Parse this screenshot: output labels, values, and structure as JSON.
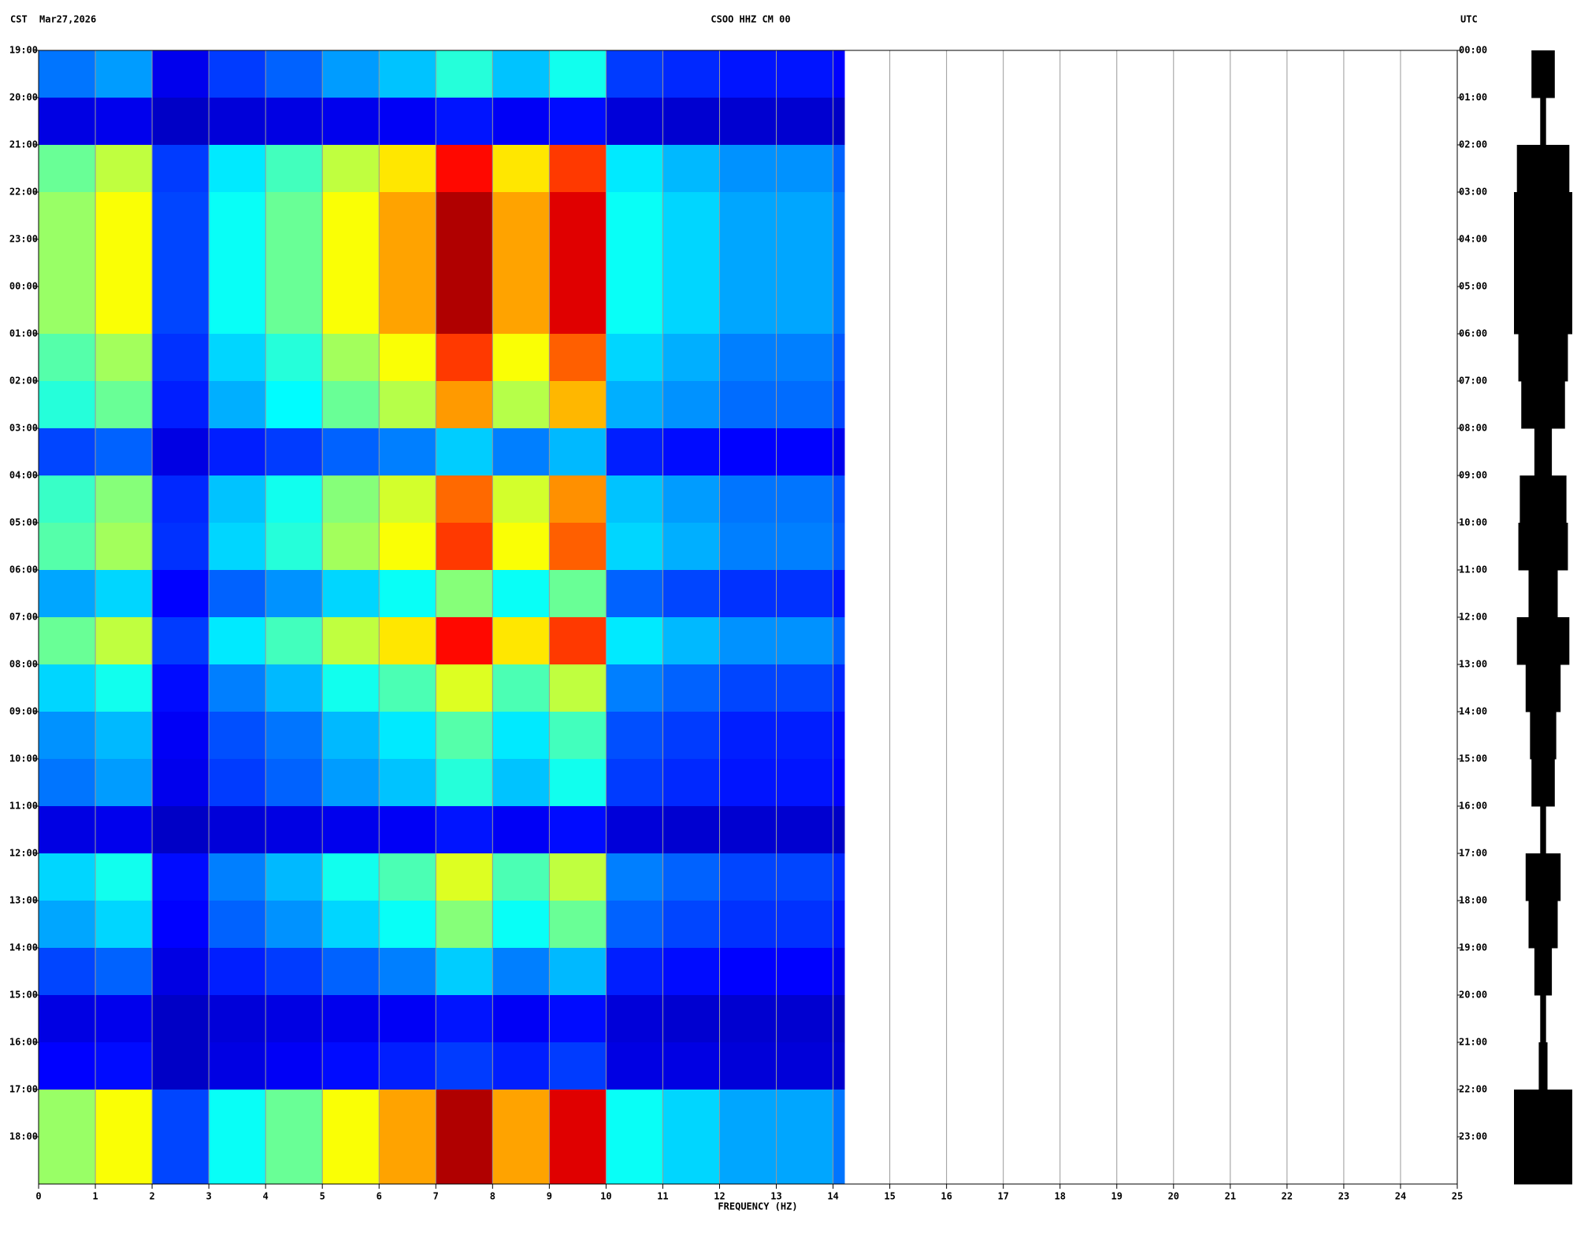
{
  "chart_data": {
    "type": "spectrogram",
    "title": "CSOO HHZ CM 00",
    "timezone": "CST",
    "date": "Mar27,2026",
    "right_axis_label": "UTC",
    "x_label": "FREQUENCY (HZ)",
    "xlim": [
      0,
      25
    ],
    "xticks": [
      0,
      1,
      2,
      3,
      4,
      5,
      6,
      7,
      8,
      9,
      10,
      11,
      12,
      13,
      14,
      15,
      16,
      17,
      18,
      19,
      20,
      21,
      22,
      23,
      24,
      25
    ],
    "grid": true,
    "bins": [
      0,
      1,
      2,
      3,
      4,
      5,
      6,
      7,
      8,
      9,
      10,
      11,
      12,
      13,
      14,
      14.2
    ],
    "categories": [
      "19:00",
      "20:00",
      "21:00",
      "22:00",
      "23:00",
      "00:00",
      "01:00",
      "02:00",
      "03:00",
      "04:00",
      "05:00",
      "06:00",
      "07:00",
      "08:00",
      "09:00",
      "10:00",
      "11:00",
      "12:00",
      "13:00",
      "14:00",
      "15:00",
      "16:00",
      "17:00",
      "18:00"
    ],
    "categories_utc": [
      "00:00",
      "01:00",
      "02:00",
      "03:00",
      "04:00",
      "05:00",
      "06:00",
      "07:00",
      "08:00",
      "09:00",
      "10:00",
      "11:00",
      "12:00",
      "13:00",
      "14:00",
      "15:00",
      "16:00",
      "17:00",
      "18:00",
      "19:00",
      "20:00",
      "21:00",
      "22:00",
      "23:00"
    ],
    "z": [
      [
        0.2,
        0.24,
        0.06,
        0.14,
        0.18,
        0.24,
        0.28,
        0.38,
        0.28,
        0.36,
        0.14,
        0.12,
        0.1,
        0.1,
        0.08
      ],
      [
        0.05,
        0.06,
        0.02,
        0.04,
        0.05,
        0.06,
        0.07,
        0.1,
        0.07,
        0.09,
        0.04,
        0.03,
        0.03,
        0.03,
        0.02
      ],
      [
        0.45,
        0.54,
        0.14,
        0.32,
        0.41,
        0.54,
        0.63,
        0.86,
        0.63,
        0.81,
        0.32,
        0.27,
        0.23,
        0.23,
        0.18
      ],
      [
        0.5,
        0.6,
        0.15,
        0.35,
        0.45,
        0.6,
        0.7,
        0.95,
        0.7,
        0.9,
        0.35,
        0.3,
        0.25,
        0.25,
        0.2
      ],
      [
        0.5,
        0.6,
        0.15,
        0.35,
        0.45,
        0.6,
        0.7,
        0.95,
        0.7,
        0.9,
        0.35,
        0.3,
        0.25,
        0.25,
        0.2
      ],
      [
        0.5,
        0.6,
        0.15,
        0.35,
        0.45,
        0.6,
        0.7,
        0.95,
        0.7,
        0.9,
        0.35,
        0.3,
        0.25,
        0.25,
        0.2
      ],
      [
        0.43,
        0.51,
        0.13,
        0.3,
        0.38,
        0.51,
        0.6,
        0.81,
        0.6,
        0.77,
        0.3,
        0.26,
        0.21,
        0.21,
        0.17
      ],
      [
        0.38,
        0.45,
        0.11,
        0.26,
        0.34,
        0.45,
        0.53,
        0.71,
        0.53,
        0.68,
        0.26,
        0.23,
        0.19,
        0.19,
        0.15
      ],
      [
        0.15,
        0.18,
        0.05,
        0.11,
        0.14,
        0.18,
        0.21,
        0.29,
        0.21,
        0.27,
        0.11,
        0.09,
        0.08,
        0.08,
        0.06
      ],
      [
        0.4,
        0.48,
        0.12,
        0.28,
        0.36,
        0.48,
        0.56,
        0.76,
        0.56,
        0.72,
        0.28,
        0.24,
        0.2,
        0.2,
        0.16
      ],
      [
        0.43,
        0.51,
        0.13,
        0.3,
        0.38,
        0.51,
        0.6,
        0.81,
        0.6,
        0.77,
        0.3,
        0.26,
        0.21,
        0.21,
        0.17
      ],
      [
        0.25,
        0.3,
        0.08,
        0.18,
        0.23,
        0.3,
        0.35,
        0.48,
        0.35,
        0.45,
        0.18,
        0.15,
        0.13,
        0.13,
        0.1
      ],
      [
        0.45,
        0.54,
        0.14,
        0.32,
        0.41,
        0.54,
        0.63,
        0.86,
        0.63,
        0.81,
        0.32,
        0.27,
        0.23,
        0.23,
        0.18
      ],
      [
        0.3,
        0.36,
        0.09,
        0.21,
        0.27,
        0.36,
        0.42,
        0.57,
        0.42,
        0.54,
        0.21,
        0.18,
        0.15,
        0.15,
        0.12
      ],
      [
        0.23,
        0.27,
        0.07,
        0.16,
        0.2,
        0.27,
        0.32,
        0.43,
        0.32,
        0.41,
        0.16,
        0.14,
        0.11,
        0.11,
        0.09
      ],
      [
        0.2,
        0.24,
        0.06,
        0.14,
        0.18,
        0.24,
        0.28,
        0.38,
        0.28,
        0.36,
        0.14,
        0.12,
        0.1,
        0.1,
        0.08
      ],
      [
        0.05,
        0.06,
        0.02,
        0.04,
        0.05,
        0.06,
        0.07,
        0.1,
        0.07,
        0.09,
        0.04,
        0.03,
        0.03,
        0.03,
        0.02
      ],
      [
        0.3,
        0.36,
        0.09,
        0.21,
        0.27,
        0.36,
        0.42,
        0.57,
        0.42,
        0.54,
        0.21,
        0.18,
        0.15,
        0.15,
        0.12
      ],
      [
        0.25,
        0.3,
        0.08,
        0.18,
        0.23,
        0.3,
        0.35,
        0.48,
        0.35,
        0.45,
        0.18,
        0.15,
        0.13,
        0.13,
        0.1
      ],
      [
        0.15,
        0.18,
        0.05,
        0.11,
        0.14,
        0.18,
        0.21,
        0.29,
        0.21,
        0.27,
        0.11,
        0.09,
        0.08,
        0.08,
        0.06
      ],
      [
        0.05,
        0.06,
        0.02,
        0.04,
        0.05,
        0.06,
        0.07,
        0.1,
        0.07,
        0.09,
        0.04,
        0.03,
        0.03,
        0.03,
        0.02
      ],
      [
        0.08,
        0.09,
        0.02,
        0.05,
        0.07,
        0.09,
        0.11,
        0.14,
        0.11,
        0.14,
        0.05,
        0.05,
        0.04,
        0.04,
        0.03
      ],
      [
        0.5,
        0.6,
        0.15,
        0.35,
        0.45,
        0.6,
        0.7,
        0.95,
        0.7,
        0.9,
        0.35,
        0.3,
        0.25,
        0.25,
        0.2
      ],
      [
        0.5,
        0.6,
        0.15,
        0.35,
        0.45,
        0.6,
        0.7,
        0.95,
        0.7,
        0.9,
        0.35,
        0.3,
        0.25,
        0.25,
        0.2
      ]
    ],
    "trace_amplitude": [
      0.4,
      0.1,
      0.9,
      1,
      1,
      1,
      0.85,
      0.75,
      0.3,
      0.8,
      0.85,
      0.5,
      0.9,
      0.6,
      0.45,
      0.4,
      0.1,
      0.6,
      0.5,
      0.3,
      0.1,
      0.15,
      1,
      1
    ]
  }
}
